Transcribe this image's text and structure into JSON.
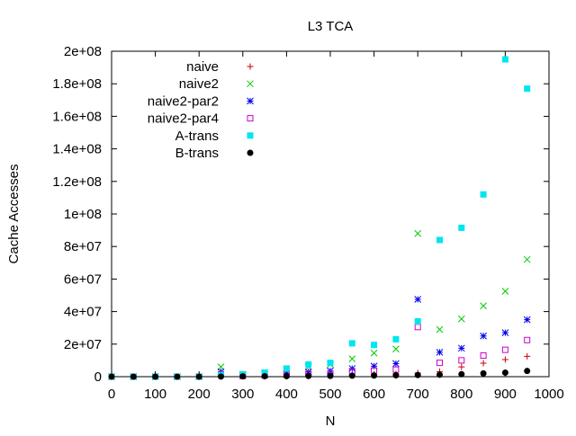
{
  "chart_data": {
    "type": "scatter",
    "title": "L3 TCA",
    "xlabel": "N",
    "ylabel": "Cache Accesses",
    "xlim": [
      0,
      1000
    ],
    "ylim": [
      0,
      200000000
    ],
    "x_ticks": [
      0,
      100,
      200,
      300,
      400,
      500,
      600,
      700,
      800,
      900,
      1000
    ],
    "x_tick_labels": [
      "0",
      "100",
      "200",
      "300",
      "400",
      "500",
      "600",
      "700",
      "800",
      "900",
      "1000"
    ],
    "y_ticks": [
      0,
      20000000,
      40000000,
      60000000,
      80000000,
      100000000,
      120000000,
      140000000,
      160000000,
      180000000,
      200000000
    ],
    "y_tick_labels": [
      "0",
      "2e+07",
      "4e+07",
      "6e+07",
      "8e+07",
      "1e+08",
      "1.2e+08",
      "1.4e+08",
      "1.6e+08",
      "1.8e+08",
      "2e+08"
    ],
    "grid": false,
    "legend_position": "top-left",
    "x": [
      0,
      50,
      100,
      150,
      200,
      250,
      300,
      350,
      400,
      450,
      500,
      550,
      600,
      650,
      700,
      750,
      800,
      850,
      900,
      950
    ],
    "series": [
      {
        "name": "naive",
        "marker": "plus",
        "color": "#cc0000",
        "values": [
          0,
          0,
          0,
          0,
          0,
          200000,
          300000,
          300000,
          500000,
          600000,
          800000,
          1000000,
          1300000,
          1700000,
          2300000,
          3100000,
          6000000,
          8300000,
          10500000,
          12500000
        ]
      },
      {
        "name": "naive2",
        "marker": "cross",
        "color": "#00cc00",
        "values": [
          0,
          0,
          0,
          0,
          0,
          6000000,
          1500000,
          2500000,
          4500000,
          6000000,
          7500000,
          11000000,
          14500000,
          17000000,
          88000000,
          29000000,
          35500000,
          43500000,
          52500000,
          72000000
        ]
      },
      {
        "name": "naive2-par2",
        "marker": "star",
        "color": "#0000ee",
        "values": [
          0,
          0,
          0,
          0,
          0,
          3000000,
          700000,
          1300000,
          2000000,
          3000000,
          3500000,
          5000000,
          6500000,
          8000000,
          47500000,
          15000000,
          17500000,
          25000000,
          27000000,
          35000000
        ]
      },
      {
        "name": "naive2-par4",
        "marker": "square-open",
        "color": "#cc00cc",
        "values": [
          0,
          0,
          0,
          0,
          0,
          1500000,
          400000,
          700000,
          1300000,
          1700000,
          2000000,
          3000000,
          3800000,
          4300000,
          30500000,
          8500000,
          10000000,
          13000000,
          16500000,
          22500000
        ]
      },
      {
        "name": "A-trans",
        "marker": "square-filled",
        "color": "#00e5ee",
        "values": [
          0,
          0,
          0,
          0,
          0,
          1000000,
          1500000,
          2500000,
          5000000,
          7500000,
          8500000,
          20500000,
          19500000,
          23000000,
          34000000,
          84000000,
          91500000,
          112000000,
          195000000,
          177000000
        ]
      },
      {
        "name": "B-trans",
        "marker": "circle-filled",
        "color": "#000000",
        "values": [
          0,
          0,
          0,
          0,
          0,
          100000,
          200000,
          300000,
          300000,
          400000,
          500000,
          600000,
          700000,
          800000,
          1000000,
          1200000,
          1500000,
          2000000,
          2500000,
          3500000
        ]
      }
    ]
  }
}
